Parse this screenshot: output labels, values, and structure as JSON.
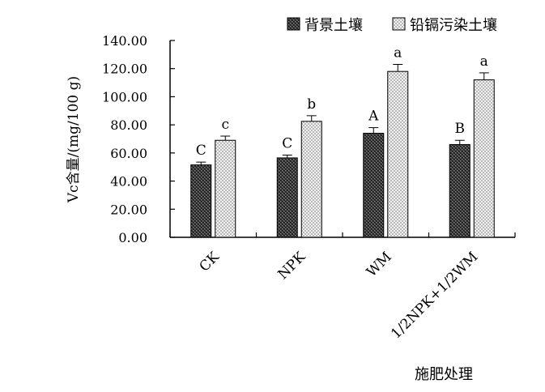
{
  "chart_data": {
    "type": "bar",
    "categories": [
      "CK",
      "NPK",
      "WM",
      "1/2NPK+1/2WM"
    ],
    "series": [
      {
        "name": "背景土壤",
        "values": [
          51.5,
          56.5,
          74.0,
          66.0
        ],
        "errors": [
          2.0,
          2.0,
          4.0,
          3.0
        ],
        "labels": [
          "C",
          "C",
          "A",
          "B"
        ],
        "pattern": "dark-check"
      },
      {
        "name": "铅镉污染土壤",
        "values": [
          69.0,
          82.5,
          118.0,
          112.0
        ],
        "errors": [
          3.0,
          4.0,
          5.0,
          5.0
        ],
        "labels": [
          "c",
          "b",
          "a",
          "a"
        ],
        "pattern": "light-check"
      }
    ],
    "ylabel": "Vc含量/(mg/100 g)",
    "xlabel": "施肥处理",
    "ylim": [
      0,
      140
    ],
    "yticks": [
      "0.00",
      "20.00",
      "40.00",
      "60.00",
      "80.00",
      "100.00",
      "120.00",
      "140.00"
    ],
    "grid": false,
    "legend": "top-right"
  }
}
